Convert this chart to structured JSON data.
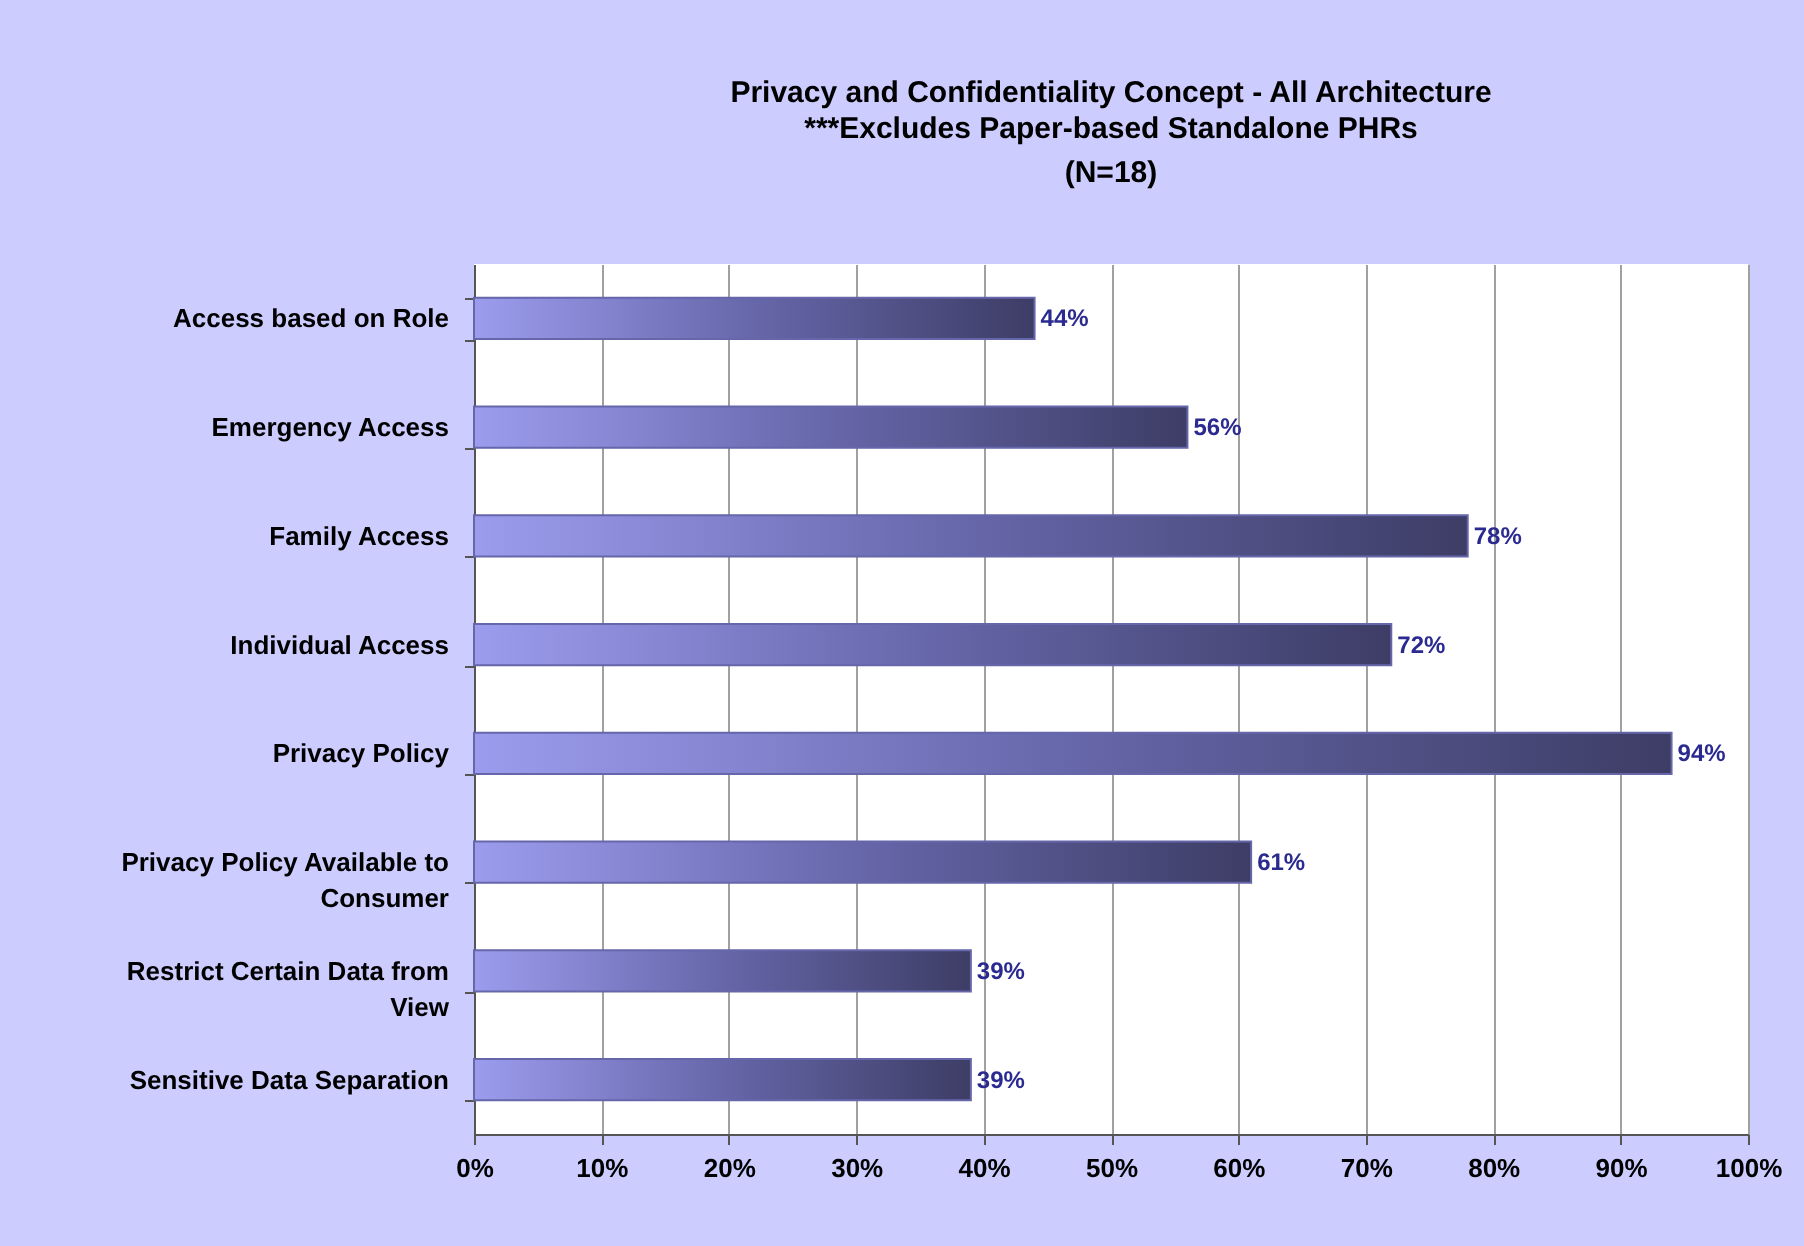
{
  "chart_data": {
    "type": "bar",
    "orientation": "horizontal",
    "title": "Privacy and Confidentiality Concept - All Architecture",
    "subtitle": "***Excludes Paper-based Standalone PHRs (N=18)",
    "categories": [
      "Access based on Role",
      "Emergency Access",
      "Family Access",
      "Individual Access",
      "Privacy Policy",
      "Privacy Policy Available to Consumer",
      "Restrict Certain Data from View",
      "Sensitive Data Separation"
    ],
    "values": [
      44,
      56,
      78,
      72,
      94,
      61,
      39,
      39
    ],
    "value_labels": [
      "44%",
      "56%",
      "78%",
      "72%",
      "94%",
      "61%",
      "39%",
      "39%"
    ],
    "color": "#6666aa",
    "xlim": [
      0,
      100
    ],
    "xticks": [
      {
        "value": 0,
        "label": "0%"
      },
      {
        "value": 10,
        "label": "10%"
      },
      {
        "value": 20,
        "label": "20%"
      },
      {
        "value": 30,
        "label": "30%"
      },
      {
        "value": 40,
        "label": "40%"
      },
      {
        "value": 50,
        "label": "50%"
      },
      {
        "value": 60,
        "label": "60%"
      },
      {
        "value": 70,
        "label": "70%"
      },
      {
        "value": 80,
        "label": "80%"
      },
      {
        "value": 90,
        "label": "90%"
      },
      {
        "value": 100,
        "label": "100%"
      }
    ],
    "grid": "x"
  }
}
